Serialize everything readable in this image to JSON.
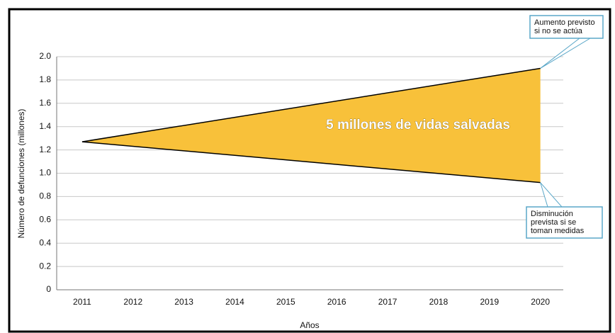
{
  "chart_data": {
    "type": "area-between",
    "x": [
      2011,
      2020
    ],
    "series": [
      {
        "name": null,
        "color": "#000000",
        "values": [
          1.27,
          1.9
        ]
      },
      {
        "name": null,
        "color": "#000000",
        "values": [
          1.27,
          0.92
        ]
      }
    ],
    "fill_color": "#f8c13a",
    "xlim": [
      2010.5,
      2020.45
    ],
    "xticks": [
      2011,
      2012,
      2013,
      2014,
      2015,
      2016,
      2017,
      2018,
      2019,
      2020
    ],
    "ylim": [
      0,
      2
    ],
    "yticks": [
      0,
      0.2,
      0.4,
      0.6,
      0.8,
      {
        "value": 1,
        "label": "1.0"
      },
      1.2,
      1.4,
      1.6,
      1.8,
      {
        "value": 2,
        "label": "2.0"
      }
    ],
    "grid": true,
    "xlabel": "Años",
    "ylabel": "Número de defunciones (millones)",
    "area_label": "5 millones de vidas salvadas",
    "annotations": [
      {
        "lines": [
          "Aumento previsto",
          "si no se actúa"
        ]
      },
      {
        "lines": [
          "Disminución",
          "prevista si se",
          "toman medidas"
        ]
      }
    ]
  }
}
